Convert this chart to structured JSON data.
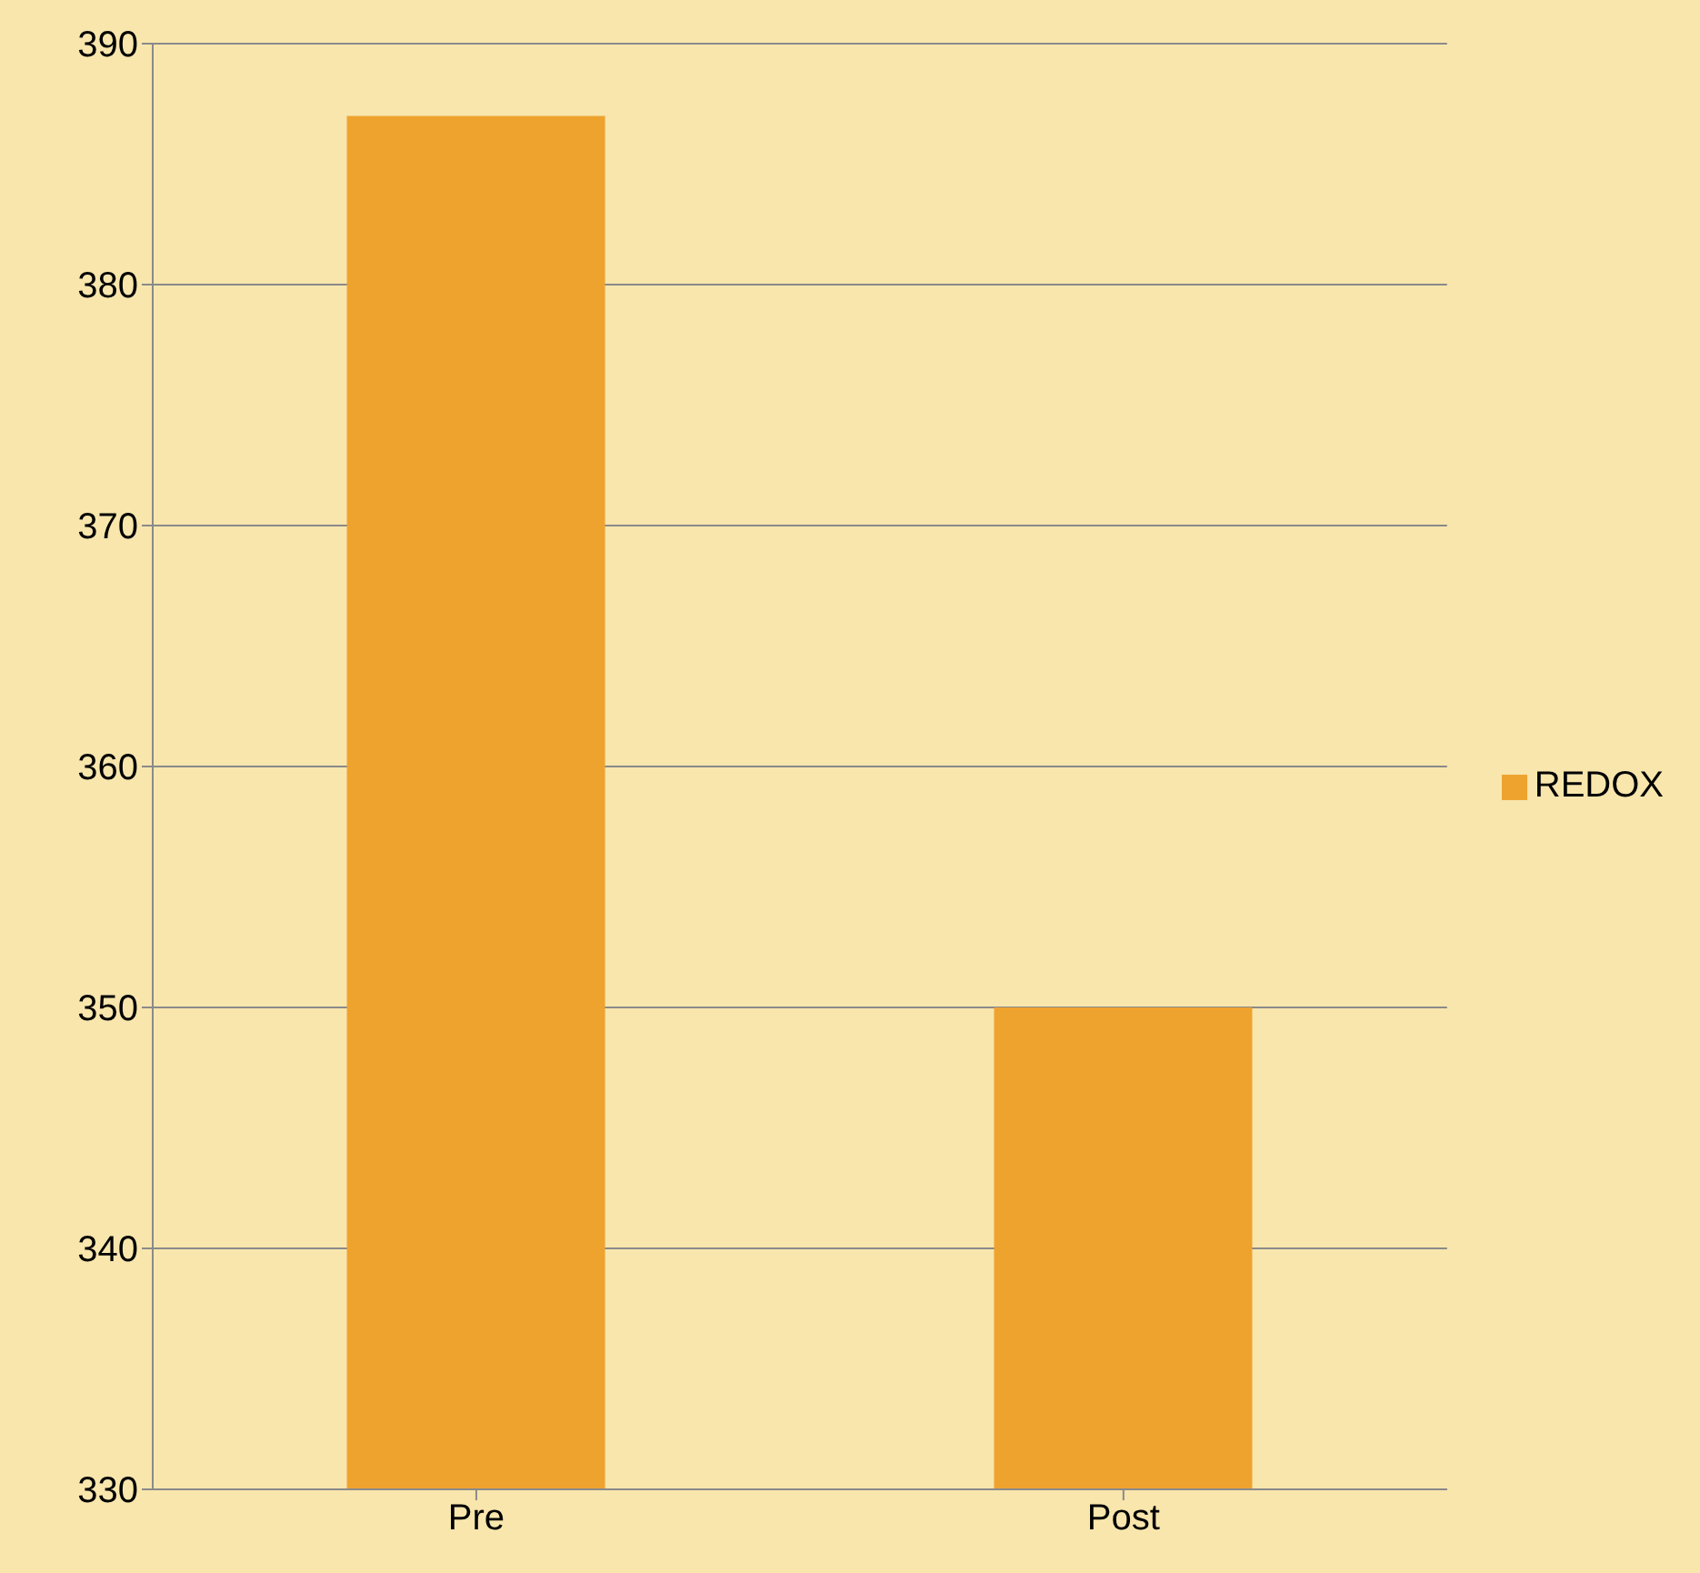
{
  "chart_data": {
    "type": "bar",
    "categories": [
      "Pre",
      "Post"
    ],
    "series": [
      {
        "name": "REDOX",
        "color": "#eea32f",
        "values": [
          387,
          350
        ]
      }
    ],
    "ylim": [
      330,
      390
    ],
    "yticks": [
      330,
      340,
      350,
      360,
      370,
      380,
      390
    ],
    "grid": "y",
    "legend": "right"
  }
}
